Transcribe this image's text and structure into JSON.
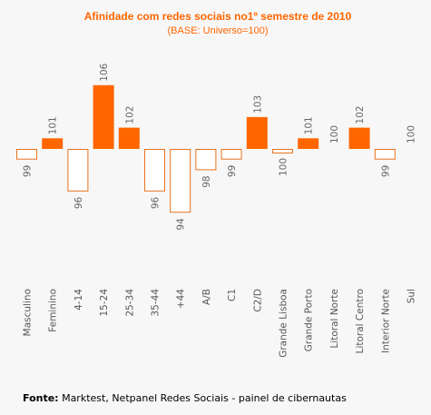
{
  "chart_data": {
    "type": "bar",
    "title": "Afinidade com redes sociais no1º semestre de 2010",
    "subtitle": "(BASE: Universo=100)",
    "baseline": 100,
    "categories": [
      "Masculino",
      "Feminino",
      "4-14",
      "15-24",
      "25-34",
      "35-44",
      "+44",
      "A/B",
      "C1",
      "C2/D",
      "Grande Lisboa",
      "Grande Porto",
      "Litoral Norte",
      "Litoral Centro",
      "Interior Norte",
      "Sul"
    ],
    "values": [
      99,
      101,
      96,
      106,
      102,
      96,
      94,
      98,
      99,
      103,
      100,
      101,
      100,
      102,
      99,
      100
    ],
    "legend": "none",
    "grid": false,
    "colors": {
      "above": "#ff6600",
      "below_fill": "#ffffff",
      "below_stroke": "#e8731f"
    }
  },
  "footer": {
    "source_label": "Fonte:",
    "source_text": " Marktest, Netpanel Redes Sociais - painel de cibernautas"
  }
}
